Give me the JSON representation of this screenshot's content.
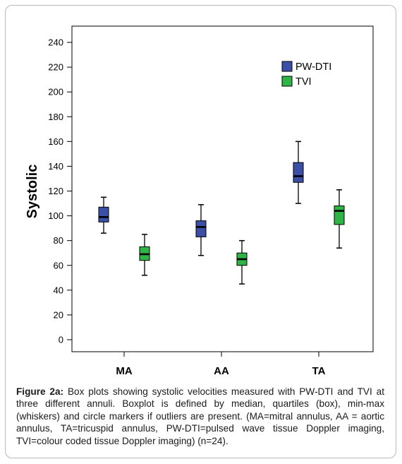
{
  "chart_data": {
    "type": "box",
    "ylabel": "Systolic",
    "ylim": [
      -10,
      250
    ],
    "yticks": [
      0,
      20,
      40,
      60,
      80,
      100,
      120,
      140,
      160,
      180,
      200,
      220,
      240
    ],
    "categories": [
      "MA",
      "AA",
      "TA"
    ],
    "legend_position": "top-right",
    "grid": false,
    "series": [
      {
        "name": "PW-DTI",
        "color": "#3b4fa6",
        "boxes": [
          {
            "min": 86,
            "q1": 95,
            "median": 99,
            "q3": 107,
            "max": 115
          },
          {
            "min": 68,
            "q1": 83,
            "median": 91,
            "q3": 96,
            "max": 109
          },
          {
            "min": 110,
            "q1": 127,
            "median": 132,
            "q3": 143,
            "max": 160
          }
        ]
      },
      {
        "name": "TVI",
        "color": "#2fb446",
        "boxes": [
          {
            "min": 52,
            "q1": 64,
            "median": 69,
            "q3": 75,
            "max": 85
          },
          {
            "min": 45,
            "q1": 60,
            "median": 65,
            "q3": 70,
            "max": 80
          },
          {
            "min": 74,
            "q1": 93,
            "median": 104,
            "q3": 108,
            "max": 121
          }
        ]
      }
    ]
  },
  "caption": {
    "label": "Figure 2a:",
    "text": " Box plots showing systolic velocities measured with PW-DTI and TVI at three different annuli. Boxplot is defined by median, quartiles (box), min-max (whiskers) and circle markers if outliers are present. (MA=mitral annulus, AA = aortic annulus, TA=tricuspid annulus, PW-DTI=pulsed wave tissue Doppler imaging, TVI=colour coded tissue Doppler imaging) (n=24)."
  }
}
